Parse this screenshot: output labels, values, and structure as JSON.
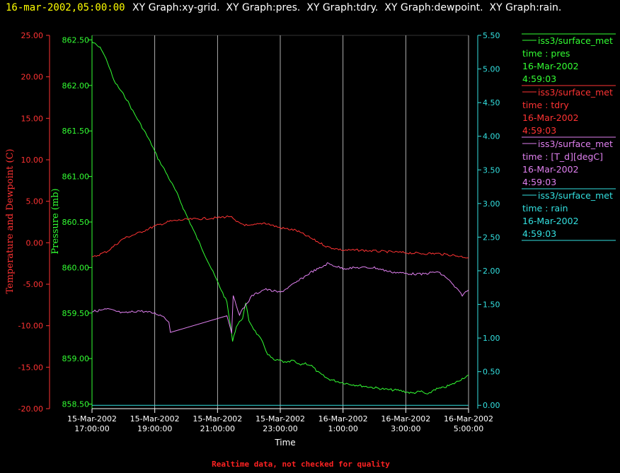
{
  "header": {
    "datetime": "16-mar-2002,05:00:00",
    "graphs": "XY Graph:xy-grid.  XY Graph:pres.  XY Graph:tdry.  XY Graph:dewpoint.  XY Graph:rain."
  },
  "footer": {
    "note": "Realtime data, not checked for quality"
  },
  "colors": {
    "background": "#000000",
    "header_datetime": "#ffff00",
    "header_text": "#ffffff",
    "pres": "#33ff33",
    "tdry": "#ff3333",
    "dewpoint": "#e080f0",
    "rain": "#33e0e0",
    "grid": "#ffffff",
    "footer": "#ff2222",
    "axis_text": "#ffffff"
  },
  "legend": [
    {
      "line1": "iss3/surface_met",
      "line2": "time : pres",
      "line3": "16-Mar-2002",
      "line4": "4:59:03",
      "color": "#33ff33"
    },
    {
      "line1": "iss3/surface_met",
      "line2": "time : tdry",
      "line3": "16-Mar-2002",
      "line4": "4:59:03",
      "color": "#ff3333"
    },
    {
      "line1": "iss3/surface_met",
      "line2": "time : [T_d][degC]",
      "line3": "16-Mar-2002",
      "line4": "4:59:03",
      "color": "#e080f0"
    },
    {
      "line1": "iss3/surface_met",
      "line2": "time : rain",
      "line3": "16-Mar-2002",
      "line4": "4:59:03",
      "color": "#33e0e0"
    }
  ],
  "chart_data": {
    "type": "line",
    "xlabel": "Time",
    "xlim": [
      "15-Mar-2002 17:00:00",
      "16-Mar-2002 05:00:00"
    ],
    "x_ticks": [
      {
        "d": "15-Mar-2002",
        "t": "17:00:00",
        "h": 0
      },
      {
        "d": "15-Mar-2002",
        "t": "19:00:00",
        "h": 2
      },
      {
        "d": "15-Mar-2002",
        "t": "21:00:00",
        "h": 4
      },
      {
        "d": "15-Mar-2002",
        "t": "23:00:00",
        "h": 6
      },
      {
        "d": "16-Mar-2002",
        "t": "1:00:00",
        "h": 8
      },
      {
        "d": "16-Mar-2002",
        "t": "3:00:00",
        "h": 10
      },
      {
        "d": "16-Mar-2002",
        "t": "5:00:00",
        "h": 12
      }
    ],
    "axes": {
      "temp": {
        "label": "Temperature and Dewpoint (C)",
        "ylim": [
          -20,
          25
        ],
        "ticks": [
          "25.00",
          "20.00",
          "15.00",
          "10.00",
          "5.00",
          "0.00",
          "-5.00",
          "-10.00",
          "-15.00",
          "-20.00"
        ]
      },
      "pres": {
        "label": "Pressure (mb)",
        "ylim": [
          858.45,
          862.55
        ],
        "ticks": [
          "862.50",
          "862.00",
          "861.50",
          "861.00",
          "860.50",
          "860.00",
          "859.50",
          "859.00",
          "858.50"
        ]
      },
      "rain": {
        "ylim": [
          -0.05,
          5.5
        ],
        "ticks": [
          "5.50",
          "5.00",
          "4.50",
          "4.00",
          "3.50",
          "3.00",
          "2.50",
          "2.00",
          "1.50",
          "1.00",
          "0.50",
          "0.00"
        ]
      }
    },
    "series": [
      {
        "name": "pres",
        "axis": "pres",
        "color": "#33ff33",
        "points": [
          [
            0,
            862.48
          ],
          [
            0.3,
            862.4
          ],
          [
            0.5,
            862.25
          ],
          [
            0.7,
            862.05
          ],
          [
            0.9,
            861.95
          ],
          [
            1.1,
            861.85
          ],
          [
            1.3,
            861.72
          ],
          [
            1.5,
            861.6
          ],
          [
            1.7,
            861.48
          ],
          [
            1.9,
            861.35
          ],
          [
            2.1,
            861.2
          ],
          [
            2.3,
            861.08
          ],
          [
            2.5,
            860.95
          ],
          [
            2.7,
            860.82
          ],
          [
            2.95,
            860.62
          ],
          [
            4.3,
            859.62
          ],
          [
            4.48,
            859.2
          ],
          [
            4.6,
            859.35
          ],
          [
            4.8,
            859.45
          ],
          [
            4.9,
            859.6
          ],
          [
            5.0,
            859.42
          ],
          [
            5.2,
            859.3
          ],
          [
            5.4,
            859.2
          ],
          [
            5.6,
            859.05
          ],
          [
            5.8,
            858.98
          ],
          [
            6.0,
            858.98
          ],
          [
            6.2,
            858.95
          ],
          [
            6.4,
            858.98
          ],
          [
            6.6,
            858.93
          ],
          [
            6.8,
            858.95
          ],
          [
            7.0,
            858.92
          ],
          [
            7.2,
            858.85
          ],
          [
            7.5,
            858.78
          ],
          [
            7.8,
            858.75
          ],
          [
            8.2,
            858.72
          ],
          [
            8.6,
            858.7
          ],
          [
            9.0,
            858.68
          ],
          [
            9.4,
            858.66
          ],
          [
            9.8,
            858.65
          ],
          [
            10.2,
            858.62
          ],
          [
            10.5,
            858.64
          ],
          [
            10.7,
            858.6
          ],
          [
            10.9,
            858.66
          ],
          [
            11.2,
            858.68
          ],
          [
            11.5,
            858.72
          ],
          [
            11.8,
            858.78
          ],
          [
            12.0,
            858.82
          ]
        ]
      },
      {
        "name": "tdry",
        "axis": "temp",
        "color": "#ff3333",
        "points": [
          [
            0,
            -1.8
          ],
          [
            0.5,
            -1.0
          ],
          [
            1.0,
            0.5
          ],
          [
            1.5,
            1.2
          ],
          [
            2.0,
            2.0
          ],
          [
            2.5,
            2.6
          ],
          [
            3.0,
            2.8
          ],
          [
            3.5,
            2.9
          ],
          [
            4.0,
            3.0
          ],
          [
            4.4,
            3.2
          ],
          [
            4.6,
            2.5
          ],
          [
            5.0,
            2.0
          ],
          [
            5.5,
            2.4
          ],
          [
            6.0,
            1.8
          ],
          [
            6.5,
            1.5
          ],
          [
            7.0,
            0.5
          ],
          [
            7.5,
            -0.5
          ],
          [
            8.0,
            -0.9
          ],
          [
            8.5,
            -0.9
          ],
          [
            9.0,
            -1.0
          ],
          [
            9.5,
            -1.1
          ],
          [
            10.0,
            -1.2
          ],
          [
            10.5,
            -1.3
          ],
          [
            11.0,
            -1.3
          ],
          [
            11.5,
            -1.5
          ],
          [
            12.0,
            -1.8
          ]
        ]
      },
      {
        "name": "[T_d][degC]",
        "axis": "temp",
        "color": "#e080f0",
        "points": [
          [
            0,
            -8.3
          ],
          [
            0.5,
            -8.0
          ],
          [
            1.0,
            -8.5
          ],
          [
            1.5,
            -8.2
          ],
          [
            2.0,
            -8.5
          ],
          [
            2.3,
            -8.9
          ],
          [
            2.45,
            -9.6
          ],
          [
            2.5,
            -10.8
          ],
          [
            4.3,
            -8.7
          ],
          [
            4.45,
            -10.8
          ],
          [
            4.5,
            -6.5
          ],
          [
            4.7,
            -8.6
          ],
          [
            4.9,
            -7.5
          ],
          [
            5.1,
            -6.4
          ],
          [
            5.5,
            -5.6
          ],
          [
            6.0,
            -6.0
          ],
          [
            6.5,
            -4.8
          ],
          [
            7.0,
            -3.5
          ],
          [
            7.3,
            -3.0
          ],
          [
            7.5,
            -2.5
          ],
          [
            8.0,
            -3.1
          ],
          [
            8.5,
            -3.0
          ],
          [
            9.0,
            -3.0
          ],
          [
            9.5,
            -3.5
          ],
          [
            10.0,
            -3.7
          ],
          [
            10.5,
            -3.8
          ],
          [
            11.0,
            -3.5
          ],
          [
            11.3,
            -4.2
          ],
          [
            11.6,
            -5.5
          ],
          [
            11.8,
            -6.3
          ],
          [
            12.0,
            -5.7
          ]
        ]
      },
      {
        "name": "rain",
        "axis": "rain",
        "color": "#33e0e0",
        "points": [
          [
            0,
            0.0
          ],
          [
            12.0,
            0.0
          ]
        ]
      }
    ]
  }
}
